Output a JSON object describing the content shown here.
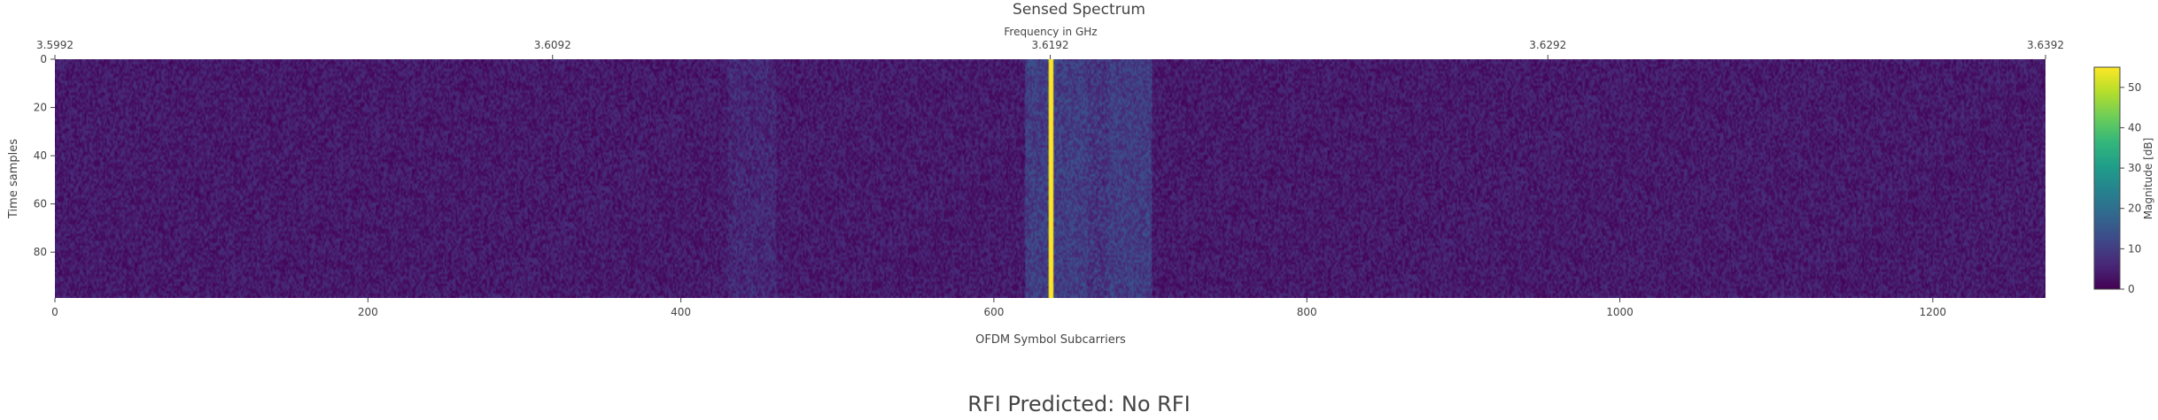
{
  "chart_data": {
    "type": "heatmap",
    "title": "Sensed Spectrum",
    "xlabel": "OFDM Symbol Subcarriers",
    "ylabel": "Time samples",
    "x2label": "Frequency in GHz",
    "xlim": [
      0,
      1272
    ],
    "ylim": [
      99,
      0
    ],
    "x_ticks": [
      0,
      200,
      400,
      600,
      800,
      1000,
      1200
    ],
    "y_ticks": [
      0,
      20,
      40,
      60,
      80
    ],
    "x2_ticks": [
      {
        "subcarrier": 0,
        "label": "3.5992"
      },
      {
        "subcarrier": 318,
        "label": "3.6092"
      },
      {
        "subcarrier": 636,
        "label": "3.6192"
      },
      {
        "subcarrier": 954,
        "label": "3.6292"
      },
      {
        "subcarrier": 1272,
        "label": "3.6392"
      }
    ],
    "colorbar": {
      "title": "Magnitude [dB]",
      "min": 0,
      "max": 55,
      "ticks": [
        0,
        10,
        20,
        30,
        40,
        50
      ],
      "colorscale": [
        "#440154",
        "#482878",
        "#3e4989",
        "#31688e",
        "#26828e",
        "#1f9e89",
        "#35b779",
        "#6ece58",
        "#b5de2b",
        "#fde725"
      ]
    },
    "features": {
      "noise_floor_db": [
        0,
        8
      ],
      "strong_line": {
        "subcarrier": 636,
        "magnitude_db": 55
      },
      "elevated_band": {
        "subcarriers": [
          620,
          700
        ],
        "magnitude_db": [
          5,
          15
        ]
      },
      "faint_band": {
        "subcarriers": [
          430,
          460
        ],
        "magnitude_db": [
          3,
          10
        ]
      }
    }
  },
  "prediction": {
    "text": "RFI Predicted: No RFI"
  }
}
